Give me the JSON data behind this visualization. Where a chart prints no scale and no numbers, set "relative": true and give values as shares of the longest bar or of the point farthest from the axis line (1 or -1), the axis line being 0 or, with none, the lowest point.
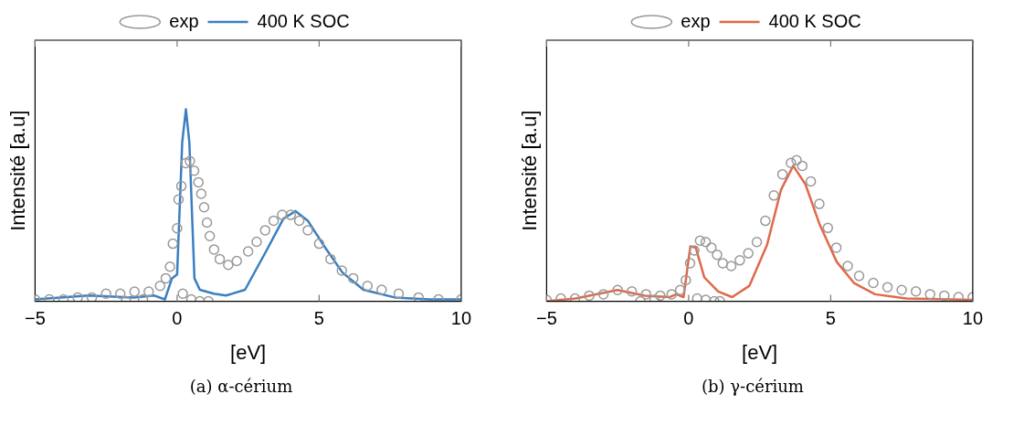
{
  "chart_data": [
    {
      "type": "line",
      "relative": true,
      "xlabel": "[eV]",
      "ylabel": "Intensité [a.u]",
      "xlim": [
        -5,
        10
      ],
      "xticks": [
        -5,
        0,
        5,
        10
      ],
      "grid": false,
      "legend": "top",
      "annotations": [
        "(a) α-cérium"
      ],
      "series": [
        {
          "name": "exp",
          "type": "scatter",
          "marker": "circle",
          "color": "#999999",
          "x": [
            -5,
            -4.5,
            -4,
            -3.5,
            -3,
            -2.5,
            -2,
            -1.5,
            -1,
            -0.6,
            -0.4,
            -0.25,
            -0.15,
            0,
            0.05,
            0.15,
            0.3,
            0.45,
            0.6,
            0.75,
            0.85,
            0.95,
            1.05,
            1.15,
            1.3,
            1.5,
            1.8,
            2.1,
            2.5,
            2.8,
            3.1,
            3.4,
            3.7,
            4,
            4.3,
            4.6,
            5,
            5.4,
            5.8,
            6.2,
            6.7,
            7.2,
            7.8,
            8.5,
            9.2,
            10,
            -1.8,
            -1.2,
            0.2,
            0.5,
            0.8,
            1.1
          ],
          "values": [
            0.01,
            0.01,
            0.01,
            0.02,
            0.02,
            0.04,
            0.04,
            0.05,
            0.05,
            0.08,
            0.12,
            0.18,
            0.3,
            0.38,
            0.53,
            0.6,
            0.72,
            0.73,
            0.68,
            0.62,
            0.56,
            0.49,
            0.41,
            0.34,
            0.27,
            0.22,
            0.19,
            0.21,
            0.26,
            0.31,
            0.37,
            0.42,
            0.45,
            0.45,
            0.42,
            0.37,
            0.3,
            0.22,
            0.16,
            0.12,
            0.08,
            0.06,
            0.04,
            0.02,
            0.01,
            0.01,
            0,
            0.01,
            0.04,
            0.01,
            0,
            0
          ]
        },
        {
          "name": "400 K SOC",
          "type": "line",
          "marker": "none",
          "color": "#3a7fc1",
          "x": [
            -5,
            -3.12,
            -1.53,
            -0.8,
            -0.43,
            -0.18,
            0,
            0.18,
            0.31,
            0.43,
            0.61,
            0.8,
            1.29,
            1.72,
            2.39,
            3.13,
            3.74,
            4.17,
            4.6,
            5.21,
            5.82,
            6.56,
            7.66,
            8.88,
            10
          ],
          "values": [
            0.01,
            0.03,
            0.02,
            0.03,
            0.01,
            0.12,
            0.14,
            0.83,
            1,
            0.83,
            0.12,
            0.06,
            0.04,
            0.03,
            0.06,
            0.26,
            0.43,
            0.47,
            0.42,
            0.28,
            0.15,
            0.06,
            0.02,
            0.01,
            0.01
          ]
        }
      ]
    },
    {
      "type": "line",
      "relative": true,
      "xlabel": "[eV]",
      "ylabel": "Intensité [a.u]",
      "xlim": [
        -5,
        10
      ],
      "xticks": [
        -5,
        0,
        5,
        10
      ],
      "grid": false,
      "legend": "top",
      "annotations": [
        "(b) γ-cérium"
      ],
      "series": [
        {
          "name": "exp",
          "type": "scatter",
          "marker": "circle",
          "color": "#999999",
          "x": [
            -5,
            -4.5,
            -4,
            -3.5,
            -3,
            -2.5,
            -2,
            -1.5,
            -1,
            -0.6,
            -0.3,
            -0.1,
            0.05,
            0.2,
            0.4,
            0.6,
            0.8,
            1,
            1.2,
            1.5,
            1.8,
            2.1,
            2.4,
            2.7,
            3,
            3.3,
            3.6,
            3.8,
            4,
            4.3,
            4.6,
            4.9,
            5.2,
            5.6,
            6,
            6.5,
            7,
            7.5,
            8,
            8.5,
            9,
            9.5,
            10,
            -1.7,
            -1.2,
            0.3,
            0.6,
            0.9,
            1.1
          ],
          "values": [
            0.01,
            0.02,
            0.02,
            0.04,
            0.05,
            0.08,
            0.07,
            0.05,
            0.04,
            0.05,
            0.08,
            0.15,
            0.27,
            0.36,
            0.43,
            0.42,
            0.38,
            0.33,
            0.27,
            0.25,
            0.29,
            0.34,
            0.42,
            0.57,
            0.75,
            0.9,
            0.98,
            1,
            0.96,
            0.85,
            0.69,
            0.52,
            0.38,
            0.25,
            0.18,
            0.13,
            0.1,
            0.08,
            0.07,
            0.05,
            0.04,
            0.03,
            0.03,
            0,
            0.01,
            0.02,
            0.01,
            0,
            0
          ]
        },
        {
          "name": "400 K SOC",
          "type": "line",
          "marker": "none",
          "color": "#e0694a",
          "x": [
            -5,
            -3.98,
            -2.51,
            -1.53,
            -0.67,
            -0.43,
            -0.18,
            0.06,
            0.25,
            0.55,
            1.04,
            1.53,
            2.14,
            2.76,
            3.25,
            3.68,
            4.11,
            4.6,
            5.21,
            5.82,
            6.56,
            7.66,
            10
          ],
          "values": [
            0,
            0.02,
            0.08,
            0.04,
            0.03,
            0.05,
            0.03,
            0.39,
            0.38,
            0.17,
            0.07,
            0.03,
            0.11,
            0.4,
            0.79,
            0.96,
            0.83,
            0.55,
            0.28,
            0.13,
            0.05,
            0.02,
            0.01
          ]
        }
      ]
    }
  ]
}
